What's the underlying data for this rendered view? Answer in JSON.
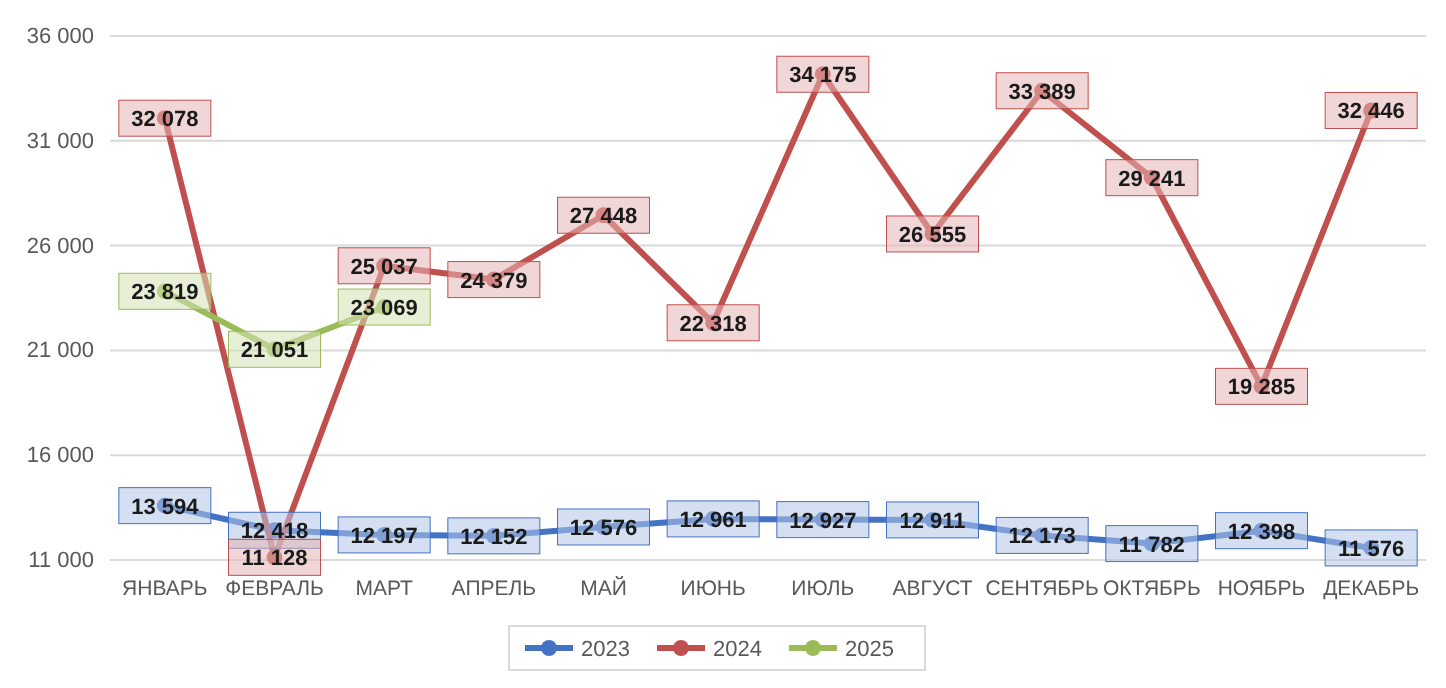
{
  "chart_data": {
    "type": "line",
    "categories": [
      "ЯНВАРЬ",
      "ФЕВРАЛЬ",
      "МАРТ",
      "АПРЕЛЬ",
      "МАЙ",
      "ИЮНЬ",
      "ИЮЛЬ",
      "АВГУСТ",
      "СЕНТЯБРЬ",
      "ОКТЯБРЬ",
      "НОЯБРЬ",
      "ДЕКАБРЬ"
    ],
    "series": [
      {
        "name": "2023",
        "color": "#4472c4",
        "values": [
          13594,
          12418,
          12197,
          12152,
          12576,
          12961,
          12927,
          12911,
          12173,
          11782,
          12398,
          11576
        ],
        "value_labels": [
          "13 594",
          "12 418",
          "12 197",
          "12 152",
          "12 576",
          "12 961",
          "12 927",
          "12 911",
          "12 173",
          "11 782",
          "12 398",
          "11 576"
        ]
      },
      {
        "name": "2024",
        "color": "#c0504d",
        "values": [
          32078,
          11128,
          25037,
          24379,
          27448,
          22318,
          34175,
          26555,
          33389,
          29241,
          19285,
          32446
        ],
        "value_labels": [
          "32 078",
          "11 128",
          "25 037",
          "24 379",
          "27 448",
          "22 318",
          "34 175",
          "26 555",
          "33 389",
          "29 241",
          "19 285",
          "32 446"
        ]
      },
      {
        "name": "2025",
        "color": "#9bbb59",
        "values": [
          23819,
          21051,
          23069,
          null,
          null,
          null,
          null,
          null,
          null,
          null,
          null,
          null
        ],
        "value_labels": [
          "23 819",
          "21 051",
          "23 069",
          null,
          null,
          null,
          null,
          null,
          null,
          null,
          null,
          null
        ]
      }
    ],
    "ylim": [
      11000,
      36000
    ],
    "yticks": [
      {
        "value": 11000,
        "label": "11 000"
      },
      {
        "value": 16000,
        "label": "16 000"
      },
      {
        "value": 21000,
        "label": "21 000"
      },
      {
        "value": 26000,
        "label": "26 000"
      },
      {
        "value": 31000,
        "label": "31 000"
      },
      {
        "value": 36000,
        "label": "36 000"
      }
    ],
    "grid": "y",
    "legend": "bottom",
    "marker": "circle",
    "line_style": "solid"
  }
}
